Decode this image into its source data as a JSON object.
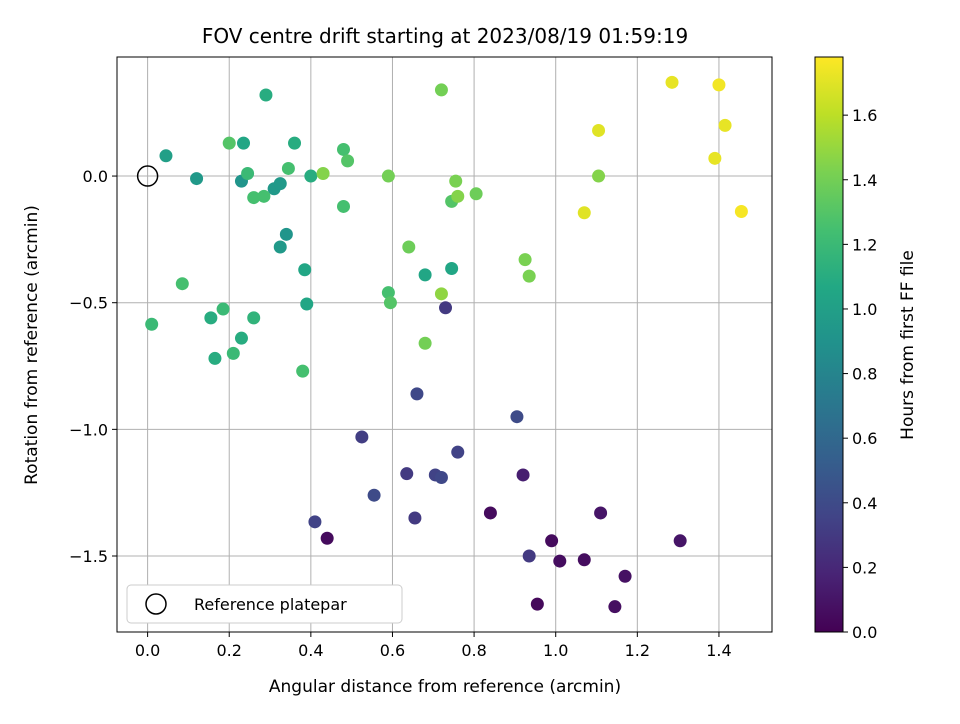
{
  "chart_data": {
    "type": "scatter",
    "title": "FOV centre drift starting at 2023/08/19 01:59:19",
    "xlabel": "Angular distance from reference (arcmin)",
    "ylabel": "Rotation from reference (arcmin)",
    "xlim": [
      -0.075,
      1.53
    ],
    "ylim": [
      -1.8,
      0.47
    ],
    "xticks": [
      0.0,
      0.2,
      0.4,
      0.6,
      0.8,
      1.0,
      1.2,
      1.4
    ],
    "xtick_labels": [
      "0.0",
      "0.2",
      "0.4",
      "0.6",
      "0.8",
      "1.0",
      "1.2",
      "1.4"
    ],
    "yticks": [
      0.0,
      -0.5,
      -1.0,
      -1.5
    ],
    "ytick_labels": [
      "0.0",
      "−0.5",
      "−1.0",
      "−1.5"
    ],
    "grid": true,
    "colormap": "viridis",
    "colorbar": {
      "label": "Hours from first FF file",
      "range": [
        0.0,
        1.78
      ],
      "ticks": [
        0.0,
        0.2,
        0.4,
        0.6,
        0.8,
        1.0,
        1.2,
        1.4,
        1.6
      ],
      "tick_labels": [
        "0.0",
        "0.2",
        "0.4",
        "0.6",
        "0.8",
        "1.0",
        "1.2",
        "1.4",
        "1.6"
      ]
    },
    "legend": {
      "label": "Reference platepar",
      "placement": "lower-left"
    },
    "reference_point": {
      "x": 0.0,
      "y": 0.0
    },
    "points": [
      {
        "x": 0.44,
        "y": -1.43,
        "c": 0.05
      },
      {
        "x": 0.84,
        "y": -1.33,
        "c": 0.05
      },
      {
        "x": 0.955,
        "y": -1.69,
        "c": 0.04
      },
      {
        "x": 0.99,
        "y": -1.44,
        "c": 0.05
      },
      {
        "x": 1.01,
        "y": -1.52,
        "c": 0.06
      },
      {
        "x": 1.07,
        "y": -1.515,
        "c": 0.06
      },
      {
        "x": 1.145,
        "y": -1.7,
        "c": 0.07
      },
      {
        "x": 1.17,
        "y": -1.58,
        "c": 0.08
      },
      {
        "x": 1.305,
        "y": -1.44,
        "c": 0.1
      },
      {
        "x": 1.11,
        "y": -1.33,
        "c": 0.1
      },
      {
        "x": 0.92,
        "y": -1.18,
        "c": 0.15
      },
      {
        "x": 0.935,
        "y": -1.5,
        "c": 0.3
      },
      {
        "x": 0.41,
        "y": -1.365,
        "c": 0.35
      },
      {
        "x": 0.525,
        "y": -1.03,
        "c": 0.32
      },
      {
        "x": 0.555,
        "y": -1.26,
        "c": 0.4
      },
      {
        "x": 0.635,
        "y": -1.175,
        "c": 0.3
      },
      {
        "x": 0.655,
        "y": -1.35,
        "c": 0.3
      },
      {
        "x": 0.66,
        "y": -0.86,
        "c": 0.38
      },
      {
        "x": 0.705,
        "y": -1.18,
        "c": 0.35
      },
      {
        "x": 0.72,
        "y": -1.19,
        "c": 0.38
      },
      {
        "x": 0.73,
        "y": -0.52,
        "c": 0.3
      },
      {
        "x": 0.76,
        "y": -1.09,
        "c": 0.35
      },
      {
        "x": 0.905,
        "y": -0.95,
        "c": 0.4
      },
      {
        "x": 0.045,
        "y": 0.08,
        "c": 1.0
      },
      {
        "x": 0.12,
        "y": -0.01,
        "c": 0.95
      },
      {
        "x": 0.23,
        "y": -0.02,
        "c": 0.92
      },
      {
        "x": 0.31,
        "y": -0.05,
        "c": 0.95
      },
      {
        "x": 0.325,
        "y": -0.03,
        "c": 0.95
      },
      {
        "x": 0.34,
        "y": -0.23,
        "c": 0.92
      },
      {
        "x": 0.325,
        "y": -0.28,
        "c": 0.95
      },
      {
        "x": 0.385,
        "y": -0.37,
        "c": 1.05
      },
      {
        "x": 0.39,
        "y": -0.505,
        "c": 1.05
      },
      {
        "x": 0.235,
        "y": 0.13,
        "c": 1.05
      },
      {
        "x": 0.29,
        "y": 0.32,
        "c": 1.1
      },
      {
        "x": 0.36,
        "y": 0.13,
        "c": 1.1
      },
      {
        "x": 0.4,
        "y": 0.0,
        "c": 1.1
      },
      {
        "x": 0.68,
        "y": -0.39,
        "c": 1.05
      },
      {
        "x": 0.745,
        "y": -0.365,
        "c": 1.05
      },
      {
        "x": 0.155,
        "y": -0.56,
        "c": 1.1
      },
      {
        "x": 0.165,
        "y": -0.72,
        "c": 1.1
      },
      {
        "x": 0.23,
        "y": -0.64,
        "c": 1.1
      },
      {
        "x": 0.26,
        "y": -0.56,
        "c": 1.15
      },
      {
        "x": 0.185,
        "y": -0.525,
        "c": 1.2
      },
      {
        "x": 0.21,
        "y": -0.7,
        "c": 1.2
      },
      {
        "x": 0.01,
        "y": -0.585,
        "c": 1.2
      },
      {
        "x": 0.085,
        "y": -0.425,
        "c": 1.25
      },
      {
        "x": 0.2,
        "y": 0.13,
        "c": 1.3
      },
      {
        "x": 0.245,
        "y": 0.01,
        "c": 1.2
      },
      {
        "x": 0.26,
        "y": -0.085,
        "c": 1.25
      },
      {
        "x": 0.285,
        "y": -0.08,
        "c": 1.25
      },
      {
        "x": 0.345,
        "y": 0.03,
        "c": 1.25
      },
      {
        "x": 0.38,
        "y": -0.77,
        "c": 1.25
      },
      {
        "x": 0.48,
        "y": -0.12,
        "c": 1.25
      },
      {
        "x": 0.48,
        "y": 0.105,
        "c": 1.25
      },
      {
        "x": 0.49,
        "y": 0.06,
        "c": 1.3
      },
      {
        "x": 0.59,
        "y": -0.46,
        "c": 1.25
      },
      {
        "x": 0.595,
        "y": -0.5,
        "c": 1.3
      },
      {
        "x": 0.745,
        "y": -0.1,
        "c": 1.3
      },
      {
        "x": 0.43,
        "y": 0.01,
        "c": 1.45
      },
      {
        "x": 0.59,
        "y": 0.0,
        "c": 1.4
      },
      {
        "x": 0.64,
        "y": -0.28,
        "c": 1.38
      },
      {
        "x": 0.68,
        "y": -0.66,
        "c": 1.4
      },
      {
        "x": 0.72,
        "y": 0.34,
        "c": 1.4
      },
      {
        "x": 0.72,
        "y": -0.465,
        "c": 1.48
      },
      {
        "x": 0.755,
        "y": -0.02,
        "c": 1.42
      },
      {
        "x": 0.76,
        "y": -0.08,
        "c": 1.45
      },
      {
        "x": 0.805,
        "y": -0.07,
        "c": 1.38
      },
      {
        "x": 0.925,
        "y": -0.33,
        "c": 1.42
      },
      {
        "x": 0.935,
        "y": -0.395,
        "c": 1.42
      },
      {
        "x": 1.105,
        "y": 0.0,
        "c": 1.45
      },
      {
        "x": 1.07,
        "y": -0.145,
        "c": 1.7
      },
      {
        "x": 1.105,
        "y": 0.18,
        "c": 1.7
      },
      {
        "x": 1.285,
        "y": 0.37,
        "c": 1.72
      },
      {
        "x": 1.39,
        "y": 0.07,
        "c": 1.72
      },
      {
        "x": 1.4,
        "y": 0.36,
        "c": 1.75
      },
      {
        "x": 1.415,
        "y": 0.2,
        "c": 1.72
      },
      {
        "x": 1.455,
        "y": -0.14,
        "c": 1.76
      }
    ]
  }
}
